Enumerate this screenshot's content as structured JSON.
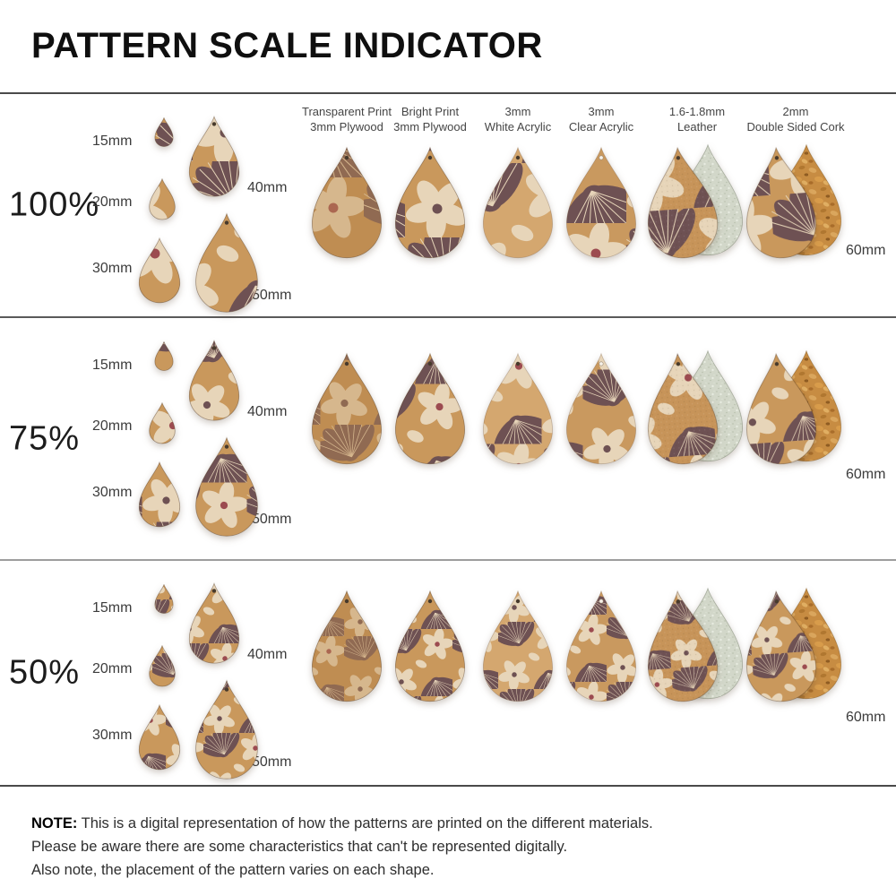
{
  "title": "PATTERN SCALE INDICATOR",
  "rows": [
    {
      "scale_label": "100%",
      "scale": 1
    },
    {
      "scale_label": "75%",
      "scale": 0.75
    },
    {
      "scale_label": "50%",
      "scale": 0.5
    }
  ],
  "size_labels": {
    "left": [
      "15mm",
      "20mm",
      "30mm"
    ],
    "right": [
      "40mm",
      "50mm"
    ],
    "far_right": "60mm"
  },
  "material_headers": [
    {
      "line1": "Transparent Print",
      "line2": "3mm Plywood",
      "type": "transparent-plywood"
    },
    {
      "line1": "Bright Print",
      "line2": "3mm Plywood",
      "type": "bright-plywood"
    },
    {
      "line1": "3mm",
      "line2": "White Acrylic",
      "type": "white-acrylic"
    },
    {
      "line1": "3mm",
      "line2": "Clear Acrylic",
      "type": "clear-acrylic"
    },
    {
      "line1": "1.6-1.8mm",
      "line2": "Leather",
      "type": "leather"
    },
    {
      "line1": "2mm",
      "line2": "Double Sided Cork",
      "type": "cork"
    }
  ],
  "note": {
    "label": "NOTE:",
    "lines": [
      "This is a digital representation of how the patterns are printed on the different materials.",
      "Please be aware there are some characteristics that can't be represented digitally.",
      "Also note, the placement of the pattern varies on each shape."
    ]
  },
  "colors": {
    "pattern_base": "#c9985c",
    "wood_base": "#bf8d52",
    "white_acrylic_base": "#d4a76f",
    "clear_acrylic_base": "#c9995f",
    "leather_base": "#c79459",
    "plum": "#6e5153",
    "cream": "#e7d5b9",
    "flower_center_red": "#9c4b50",
    "flower_center_plum": "#6e5153",
    "suede_base": "#d2d7c9",
    "cork_base": "#c78c42",
    "divider": "#4a4a4a",
    "text": "#3c3c3c",
    "title_color": "#0f0f0f"
  }
}
